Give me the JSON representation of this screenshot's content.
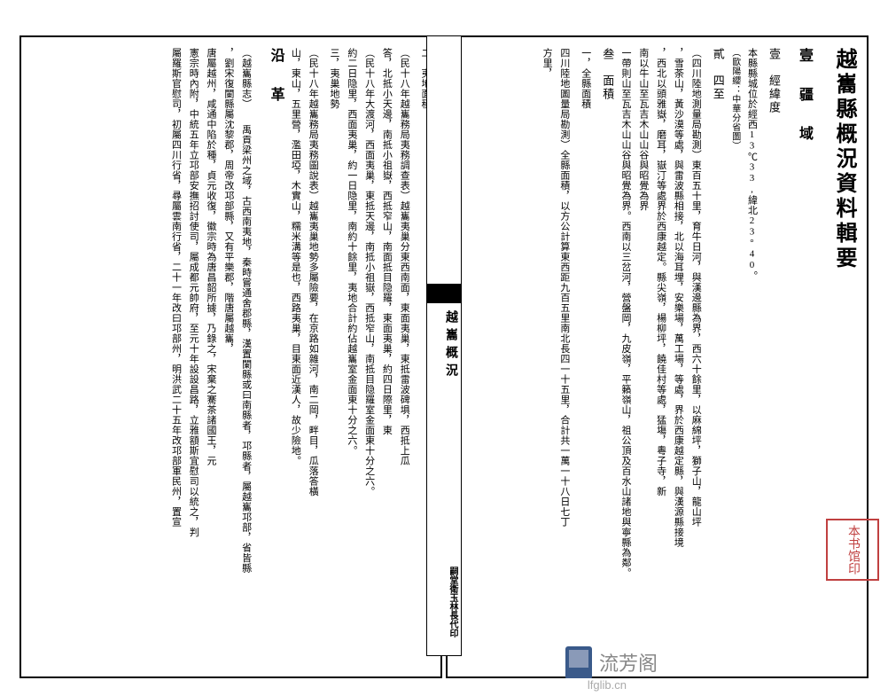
{
  "document": {
    "main_title": "越巂縣概況資料輯要",
    "spine_title": "越巂概況",
    "spine_bottom": "嗣堂衛玉林長代印",
    "page_number": "一"
  },
  "right_page": {
    "section1_header": "壹　疆　域",
    "sub1": "壹　經緯度",
    "sub1_text": "本縣縣城位於經西13℃33,緯北23°40。",
    "sub1_note": "（歐陽纓：中華分省圖）",
    "sub2": "貳　四至",
    "sub2_line1": "（四川陸地測量局勘測）東百五十里，育牛日河，與漢邊縣為界，西六十餘里，以麻綿坪，獅子山，龍山坪",
    "sub2_line2": "，雪荼山，黃沙漠等處，與雷波縣相接，北以海耳埋，安樂場，萬工場，等處，界於西康越定縣，與漢源縣接境",
    "sub2_line3": "，西北以頭雅嶽，磨耳，嶽汀等處界於西康越定。縣尖嶺，楊柳坪，饒佳村等處，猛塲，粵子寺，新",
    "sub2_line4": "南以牛山至瓦吉木山山谷與昭覺為界",
    "sub2_line5": "一帶則山至瓦吉木山山谷與昭覺為界。西南以三岔河，營盤岡，九皮嶺，平籟嶺山，祖公頂及百水山諸地與寧縣為鄰。",
    "sub3": "叁　面積",
    "sub3_item1": "一，全縣面積",
    "sub3_item1_text": "四川陸地圖量局勘測）全縣面積，以方公計算東西距九百五里南北長四一十五里，合計共一萬一十八日七丁",
    "sub3_item2": "方里，"
  },
  "left_page": {
    "item2": "二，夷地面積",
    "item2a_text": "（民十八年越巂務局夷務調查表）越巂夷巢分東西南面，東面夷巢，東抵雷波碑埧，西抵上瓜",
    "item2a_text2": "答，北抵小天邊，南抵小祖嶽，西抵窄山，南面抵目隐羅，東面夷巢，約四日際里，東",
    "item2b_text": "（民十八年大渡河，西面夷巢，東抵天邊，南抵小祖嶽，西抵窄山，南抵目隐羅室金面東十分之六。",
    "item2c_text": "約二日隐里，西面夷巢，約一日隐里，南約十餘里，夷地合計約佔越巂室金面東十分之六。",
    "item3": "三，夷巢地勢",
    "item3_text1": "（民十八年越巂務局夷務圖說表）越巂夷巢地勢多屬險要，在京路如雜河，南二岡，畔目，瓜落答橫",
    "item3_text2": "山，東山，五里營，濫田埡，木實山，糯米溝等是也，西路夷巢，目東面近漢人，故少險地。",
    "section2_header": "沿　革",
    "history_text1": "（越巂縣志）　　禹貢梁州之域，古西南夷地，秦時嘗通舍郡縣，漢置闌縣或曰南縣者，邛縣者，屬越巂邛部，省皆縣",
    "history_text2": "，劉宋復闌縣屬沈黎郡，周帝改邛部縣，又有平樂郡，階唐屬越巂，",
    "history_text3": "唐屬越州，咸通中陷於種，貞元收復，徽宗時為唐昌韶所據，乃錄之，宋棄之騫茶諸國王，元",
    "history_text4": "憲宗時內附，中統五年立邛部安撫招討使司，屬成都元帥府，至元十年設設昌路，立雅額斯宜慰司以統之，判",
    "history_text5": "屬羅斯官慰司，初屬四川行省，尋屬雲南行省，二十一年改曰邛部州，明洪武二十五年改邛部軍民州，置宣"
  },
  "watermark": {
    "text": "流芳阁",
    "url": "lfglib.cn"
  },
  "seal": {
    "text": "本书馆印"
  },
  "colors": {
    "text": "#000000",
    "border": "#000000",
    "background": "#ffffff",
    "seal": "#c04040",
    "watermark_text": "#888888",
    "watermark_url": "#aaaaaa",
    "logo_primary": "#3a5a8a",
    "logo_secondary": "#8a9ab8"
  },
  "typography": {
    "title_fontsize": 24,
    "section_fontsize": 16,
    "body_fontsize": 11,
    "font_family": "SimSun"
  }
}
